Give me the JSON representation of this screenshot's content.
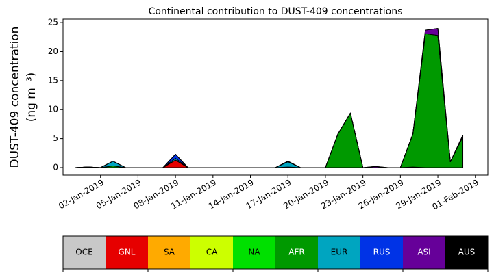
{
  "chart_data": {
    "type": "stacked_area",
    "title": "Continental contribution to DUST-409 concentrations",
    "y_label": [
      "DUST-409 concentration",
      "(ng m⁻³)"
    ],
    "x": [
      "2018-12-31",
      "2019-01-01",
      "2019-01-02",
      "2019-01-03",
      "2019-01-04",
      "2019-01-05",
      "2019-01-06",
      "2019-01-07",
      "2019-01-08",
      "2019-01-09",
      "2019-01-10",
      "2019-01-11",
      "2019-01-12",
      "2019-01-13",
      "2019-01-14",
      "2019-01-15",
      "2019-01-16",
      "2019-01-17",
      "2019-01-18",
      "2019-01-19",
      "2019-01-20",
      "2019-01-21",
      "2019-01-22",
      "2019-01-23",
      "2019-01-24",
      "2019-01-25",
      "2019-01-26",
      "2019-01-27",
      "2019-01-28",
      "2019-01-29",
      "2019-01-30",
      "2019-01-31"
    ],
    "series": [
      {
        "name": "OCE",
        "color": "#c8c8c8",
        "values": [
          0,
          0,
          0,
          0,
          0,
          0,
          0,
          0,
          0,
          0,
          0,
          0,
          0,
          0,
          0,
          0,
          0,
          0,
          0,
          0,
          0,
          0,
          0,
          0,
          0,
          0,
          0,
          0,
          0,
          0,
          0,
          0
        ]
      },
      {
        "name": "GNL",
        "color": "#e60000",
        "values": [
          0,
          0,
          0,
          0,
          0,
          0,
          0,
          0,
          1.3,
          0,
          0,
          0,
          0,
          0,
          0,
          0,
          0,
          0,
          0,
          0,
          0,
          0,
          0,
          0,
          0,
          0,
          0,
          0,
          0,
          0,
          0,
          0
        ]
      },
      {
        "name": "SA",
        "color": "#ffaa00",
        "values": [
          0,
          0,
          0,
          0,
          0,
          0,
          0,
          0,
          0,
          0,
          0,
          0,
          0,
          0,
          0,
          0,
          0,
          0,
          0,
          0,
          0,
          0,
          0,
          0,
          0,
          0,
          0,
          0,
          0,
          0,
          0,
          0
        ]
      },
      {
        "name": "CA",
        "color": "#ccff00",
        "values": [
          0,
          0,
          0,
          0,
          0,
          0,
          0,
          0,
          0,
          0,
          0,
          0,
          0,
          0,
          0,
          0,
          0,
          0,
          0,
          0,
          0,
          0,
          0,
          0,
          0,
          0,
          0,
          0,
          0,
          0,
          0,
          0
        ]
      },
      {
        "name": "NA",
        "color": "#00e000",
        "values": [
          0,
          0,
          0,
          0,
          0,
          0,
          0,
          0,
          0,
          0,
          0,
          0,
          0,
          0,
          0,
          0,
          0,
          0,
          0,
          0,
          0,
          0,
          0,
          0,
          0,
          0,
          0,
          0.1,
          0,
          0,
          0,
          0
        ]
      },
      {
        "name": "AFR",
        "color": "#009900",
        "values": [
          0,
          0.1,
          0,
          0.3,
          0,
          0,
          0,
          0,
          0,
          0,
          0,
          0,
          0,
          0,
          0,
          0,
          0,
          0.1,
          0,
          0,
          0,
          5.8,
          9.4,
          0,
          0,
          0,
          0,
          5.7,
          23.1,
          22.8,
          1.0,
          5.3
        ]
      },
      {
        "name": "EUR",
        "color": "#00a5c0",
        "values": [
          0,
          0,
          0,
          0.8,
          0,
          0,
          0,
          0,
          0.3,
          0,
          0,
          0,
          0,
          0,
          0,
          0,
          0,
          0.9,
          0,
          0,
          0,
          0,
          0,
          0,
          0,
          0,
          0,
          0,
          0,
          0,
          0,
          0
        ]
      },
      {
        "name": "RUS",
        "color": "#0033e6",
        "values": [
          0,
          0,
          0,
          0,
          0,
          0,
          0,
          0,
          0.7,
          0,
          0,
          0,
          0,
          0,
          0,
          0,
          0,
          0.1,
          0,
          0,
          0,
          0,
          0,
          0,
          0,
          0,
          0,
          0,
          0,
          0,
          0,
          0
        ]
      },
      {
        "name": "ASI",
        "color": "#660099",
        "values": [
          0,
          0,
          0,
          0,
          0,
          0,
          0,
          0,
          0,
          0,
          0,
          0,
          0,
          0,
          0,
          0,
          0,
          0,
          0,
          0,
          0,
          0,
          0,
          0,
          0.2,
          0,
          0,
          0,
          0.6,
          1.2,
          0,
          0.3
        ]
      },
      {
        "name": "AUS",
        "color": "#000000",
        "values": [
          0,
          0,
          0,
          0,
          0,
          0,
          0,
          0,
          0,
          0,
          0,
          0,
          0,
          0,
          0,
          0,
          0,
          0,
          0,
          0,
          0,
          0,
          0,
          0,
          0,
          0,
          0,
          0,
          0,
          0,
          0,
          0
        ]
      }
    ],
    "xlim": [
      "2018-12-30",
      "2019-02-02"
    ],
    "xticks": [
      {
        "value": "2019-01-02",
        "label": "02-Jan-2019"
      },
      {
        "value": "2019-01-05",
        "label": "05-Jan-2019"
      },
      {
        "value": "2019-01-08",
        "label": "08-Jan-2019"
      },
      {
        "value": "2019-01-11",
        "label": "11-Jan-2019"
      },
      {
        "value": "2019-01-14",
        "label": "14-Jan-2019"
      },
      {
        "value": "2019-01-17",
        "label": "17-Jan-2019"
      },
      {
        "value": "2019-01-20",
        "label": "20-Jan-2019"
      },
      {
        "value": "2019-01-23",
        "label": "23-Jan-2019"
      },
      {
        "value": "2019-01-26",
        "label": "26-Jan-2019"
      },
      {
        "value": "2019-01-29",
        "label": "29-Jan-2019"
      },
      {
        "value": "2019-02-01",
        "label": "01-Feb-2019"
      }
    ],
    "ylim": [
      -1.3,
      25.6
    ],
    "yticks": [
      0,
      5,
      10,
      15,
      20,
      25
    ]
  }
}
